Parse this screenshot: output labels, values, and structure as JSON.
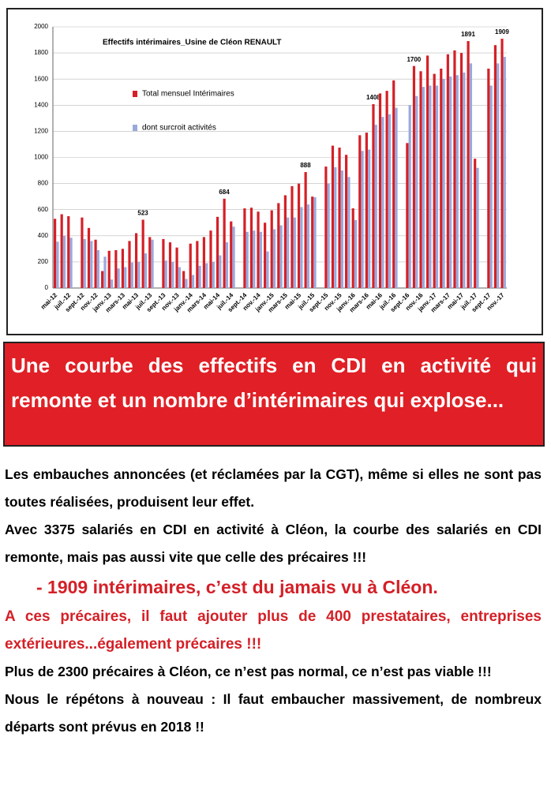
{
  "chart_data": {
    "type": "bar",
    "title": "Effectifs intérimaires_Usine de Cléon RENAULT",
    "categories": [
      "mai-12",
      null,
      "juil.-12",
      null,
      "sept.-12",
      null,
      "nov.-12",
      null,
      "janv.-13",
      null,
      "mars-13",
      null,
      "mai-13",
      null,
      "juil.-13",
      null,
      "sept.-13",
      null,
      "nov.-13",
      null,
      "janv.-14",
      null,
      "mars-14",
      null,
      "mai-14",
      null,
      "juil.-14",
      null,
      "sept.-14",
      null,
      "nov.-14",
      null,
      "janv.-15",
      null,
      "mars-15",
      null,
      "mai-15",
      null,
      "juil.-15",
      null,
      "sept.-15",
      null,
      "nov.-15",
      null,
      "janv.-16",
      null,
      "mars-16",
      null,
      "mai-16",
      null,
      "juil.-16",
      null,
      "sept.-16",
      null,
      "nov.-16",
      null,
      "janv.-17",
      null,
      "mars-17",
      null,
      "mai-17",
      null,
      "juil.-17",
      null,
      "sept.-17",
      null,
      "nov.-17"
    ],
    "series": [
      {
        "name": "Total mensuel Intérimaires",
        "color": "#d42027",
        "values": [
          530,
          565,
          550,
          null,
          540,
          460,
          370,
          130,
          285,
          290,
          300,
          360,
          420,
          523,
          390,
          null,
          375,
          350,
          310,
          130,
          340,
          360,
          390,
          440,
          545,
          684,
          510,
          null,
          610,
          615,
          585,
          500,
          595,
          650,
          710,
          780,
          800,
          888,
          700,
          null,
          930,
          1090,
          1075,
          1020,
          610,
          1170,
          1190,
          1408,
          1490,
          1510,
          1590,
          null,
          1110,
          1700,
          1660,
          1780,
          1640,
          1680,
          1790,
          1820,
          1800,
          1891,
          990,
          null,
          1680,
          1860,
          1909
        ],
        "value_labels": [
          null,
          null,
          null,
          null,
          null,
          null,
          null,
          null,
          null,
          null,
          null,
          null,
          null,
          523,
          null,
          null,
          null,
          null,
          null,
          null,
          null,
          null,
          null,
          null,
          null,
          684,
          null,
          null,
          null,
          null,
          null,
          null,
          null,
          null,
          null,
          null,
          null,
          888,
          null,
          null,
          null,
          null,
          null,
          null,
          null,
          null,
          null,
          1408,
          null,
          null,
          null,
          null,
          null,
          1700,
          null,
          null,
          null,
          null,
          null,
          null,
          null,
          1891,
          null,
          null,
          null,
          null,
          1909
        ]
      },
      {
        "name": "dont surcroit activités",
        "color": "#9aa9dc",
        "values": [
          355,
          400,
          385,
          null,
          375,
          360,
          290,
          240,
          65,
          150,
          160,
          195,
          200,
          265,
          370,
          null,
          210,
          200,
          160,
          70,
          100,
          170,
          190,
          200,
          250,
          350,
          470,
          null,
          430,
          440,
          430,
          280,
          450,
          480,
          540,
          540,
          620,
          640,
          695,
          null,
          800,
          925,
          900,
          850,
          520,
          1050,
          1060,
          1250,
          1310,
          1330,
          1380,
          null,
          1400,
          1470,
          1540,
          1550,
          1550,
          1600,
          1620,
          1630,
          1650,
          1720,
          920,
          null,
          1550,
          1720,
          1770
        ]
      }
    ],
    "ylim": [
      0,
      2000
    ],
    "yticks": [
      0,
      200,
      400,
      600,
      800,
      1000,
      1200,
      1400,
      1600,
      1800,
      2000
    ],
    "grid": true
  },
  "banner": "Une courbe des effectifs en CDI en activité qui remonte et un nombre d’intérimaires qui explose...",
  "paragraphs": [
    "Les embauches annoncées (et réclamées par la CGT), même si elles ne sont pas toutes réalisées, produisent leur effet.",
    "Avec 3375 salariés en CDI en activité à Cléon, la courbe des salariés en CDI remonte, mais pas aussi vite que celle des précaires !!!",
    "- 1909 intérimaires, c’est du jamais vu à Cléon.",
    "A ces précaires, il faut ajouter plus de 400 prestataires, entreprises extérieures...également précaires !!!",
    "Plus de 2300 précaires à Cléon, ce n’est pas normal, ce n’est pas viable !!!",
    "Nous le répétons à nouveau : Il faut embaucher massivement, de nombreux départs sont prévus en 2018 !!"
  ]
}
